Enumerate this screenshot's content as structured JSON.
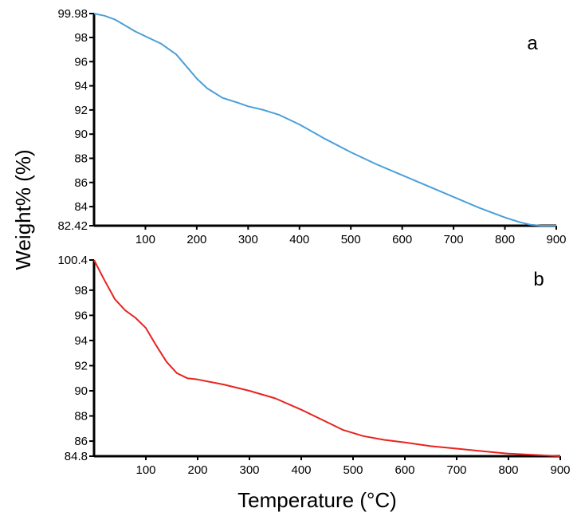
{
  "chart_data": {
    "type": "line",
    "shared_ylabel": "Weight% (%)",
    "shared_xlabel": "Temperature (°C)",
    "panels": [
      {
        "label": "a",
        "color": "#4a9fd8",
        "xlim": [
          0,
          900
        ],
        "ylim": [
          82.42,
          99.98
        ],
        "xticks": [
          "100",
          "200",
          "300",
          "400",
          "500",
          "600",
          "700",
          "800",
          "900"
        ],
        "yticks": [
          "99.98",
          "98",
          "96",
          "94",
          "92",
          "90",
          "88",
          "86",
          "84",
          "82.42"
        ],
        "series": [
          {
            "name": "a",
            "x": [
              0,
              20,
              40,
              60,
              80,
              100,
              130,
              160,
              180,
              200,
              220,
              250,
              280,
              300,
              330,
              360,
              400,
              450,
              500,
              550,
              600,
              650,
              700,
              750,
              800,
              830,
              850,
              870,
              900
            ],
            "y": [
              99.98,
              99.8,
              99.5,
              99.0,
              98.5,
              98.1,
              97.5,
              96.6,
              95.6,
              94.6,
              93.8,
              93.0,
              92.6,
              92.3,
              92.0,
              91.6,
              90.8,
              89.6,
              88.5,
              87.5,
              86.6,
              85.7,
              84.8,
              83.9,
              83.1,
              82.7,
              82.5,
              82.42,
              82.42
            ]
          }
        ]
      },
      {
        "label": "b",
        "color": "#e8231f",
        "xlim": [
          0,
          900
        ],
        "ylim": [
          84.8,
          100.4
        ],
        "xticks": [
          "100",
          "200",
          "300",
          "400",
          "500",
          "600",
          "700",
          "800",
          "900"
        ],
        "yticks": [
          "100.4",
          "98",
          "96",
          "94",
          "92",
          "90",
          "88",
          "86",
          "84.8"
        ],
        "series": [
          {
            "name": "b",
            "x": [
              0,
              20,
              40,
              60,
              80,
              100,
              120,
              140,
              160,
              180,
              200,
              250,
              300,
              350,
              400,
              450,
              480,
              520,
              560,
              600,
              650,
              700,
              750,
              800,
              850,
              900
            ],
            "y": [
              100.4,
              98.8,
              97.3,
              96.4,
              95.8,
              95.0,
              93.6,
              92.3,
              91.4,
              91.0,
              90.9,
              90.5,
              90.0,
              89.4,
              88.5,
              87.5,
              86.9,
              86.4,
              86.1,
              85.9,
              85.6,
              85.4,
              85.2,
              85.0,
              84.9,
              84.8
            ]
          }
        ]
      }
    ]
  }
}
